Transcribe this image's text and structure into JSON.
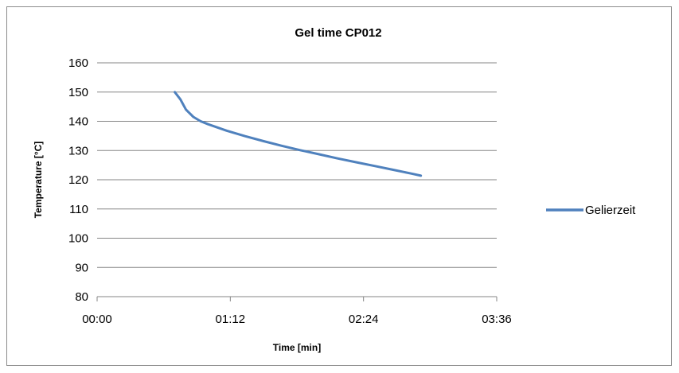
{
  "chart_data": {
    "type": "line",
    "title": "Gel time CP012",
    "xlabel": "Time [min]",
    "ylabel": "Temperature [°C]",
    "x_unit": "mm:ss",
    "xlim": [
      "00:00",
      "03:36"
    ],
    "ylim": [
      80,
      160
    ],
    "x_ticks": [
      "00:00",
      "01:12",
      "02:24",
      "03:36"
    ],
    "y_ticks": [
      "80",
      "90",
      "100",
      "110",
      "120",
      "130",
      "140",
      "150",
      "160"
    ],
    "grid": true,
    "legend_position": "right",
    "series": [
      {
        "name": "Gelierzeit",
        "color": "#4F81BD",
        "x": [
          "00:42",
          "00:45",
          "00:48",
          "00:52",
          "00:56",
          "01:00",
          "01:10",
          "01:20",
          "01:30",
          "01:40",
          "01:50",
          "02:00",
          "02:10",
          "02:20",
          "02:30",
          "02:40",
          "02:50",
          "02:55"
        ],
        "y": [
          150,
          147.5,
          144,
          141.5,
          140,
          139,
          136.8,
          134.9,
          133.2,
          131.6,
          130.1,
          128.7,
          127.3,
          126,
          124.7,
          123.4,
          122.1,
          121.4
        ]
      }
    ]
  }
}
